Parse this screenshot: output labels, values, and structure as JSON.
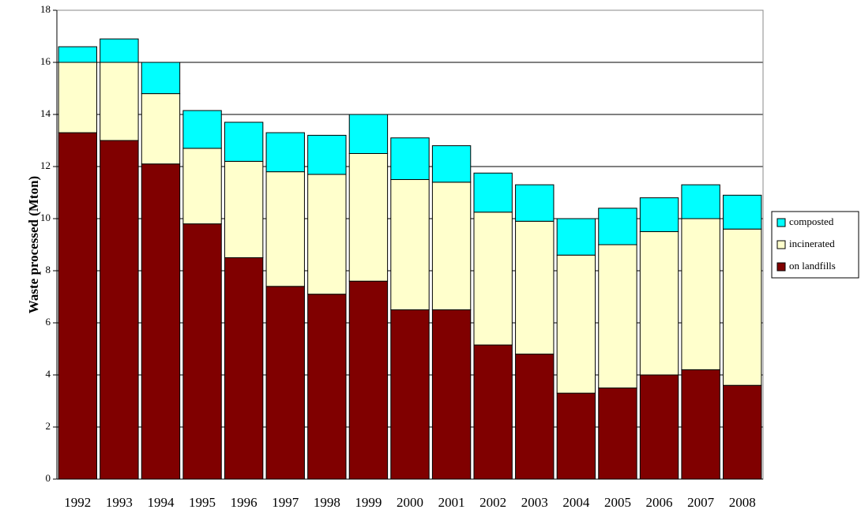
{
  "chart_data": {
    "type": "stacked_bar",
    "y_label": "Waste processed (Mton)",
    "categories": [
      "1992",
      "1993",
      "1994",
      "1995",
      "1996",
      "1997",
      "1998",
      "1999",
      "2000",
      "2001",
      "2002",
      "2003",
      "2004",
      "2005",
      "2006",
      "2007",
      "2008"
    ],
    "series": [
      {
        "name": "on landfills",
        "color": "#800000",
        "values": [
          13.3,
          13.0,
          12.1,
          9.8,
          8.5,
          7.4,
          7.1,
          7.6,
          6.5,
          6.5,
          5.15,
          4.8,
          3.3,
          3.5,
          4.0,
          4.2,
          3.6
        ]
      },
      {
        "name": "incinerated",
        "color": "#ffffcc",
        "values": [
          2.7,
          3.0,
          2.7,
          2.9,
          3.7,
          4.4,
          4.6,
          4.9,
          5.0,
          4.9,
          5.1,
          5.1,
          5.3,
          5.5,
          5.5,
          5.8,
          6.0
        ]
      },
      {
        "name": "composted",
        "color": "#00ffff",
        "values": [
          0.6,
          0.9,
          1.2,
          1.45,
          1.5,
          1.5,
          1.5,
          1.5,
          1.6,
          1.4,
          1.5,
          1.4,
          1.4,
          1.4,
          1.3,
          1.3,
          1.3
        ]
      }
    ],
    "ylim": [
      0,
      18
    ],
    "yticks": [
      0,
      2,
      4,
      6,
      8,
      10,
      12,
      14,
      16,
      18
    ],
    "grid": true,
    "legend": "right"
  }
}
